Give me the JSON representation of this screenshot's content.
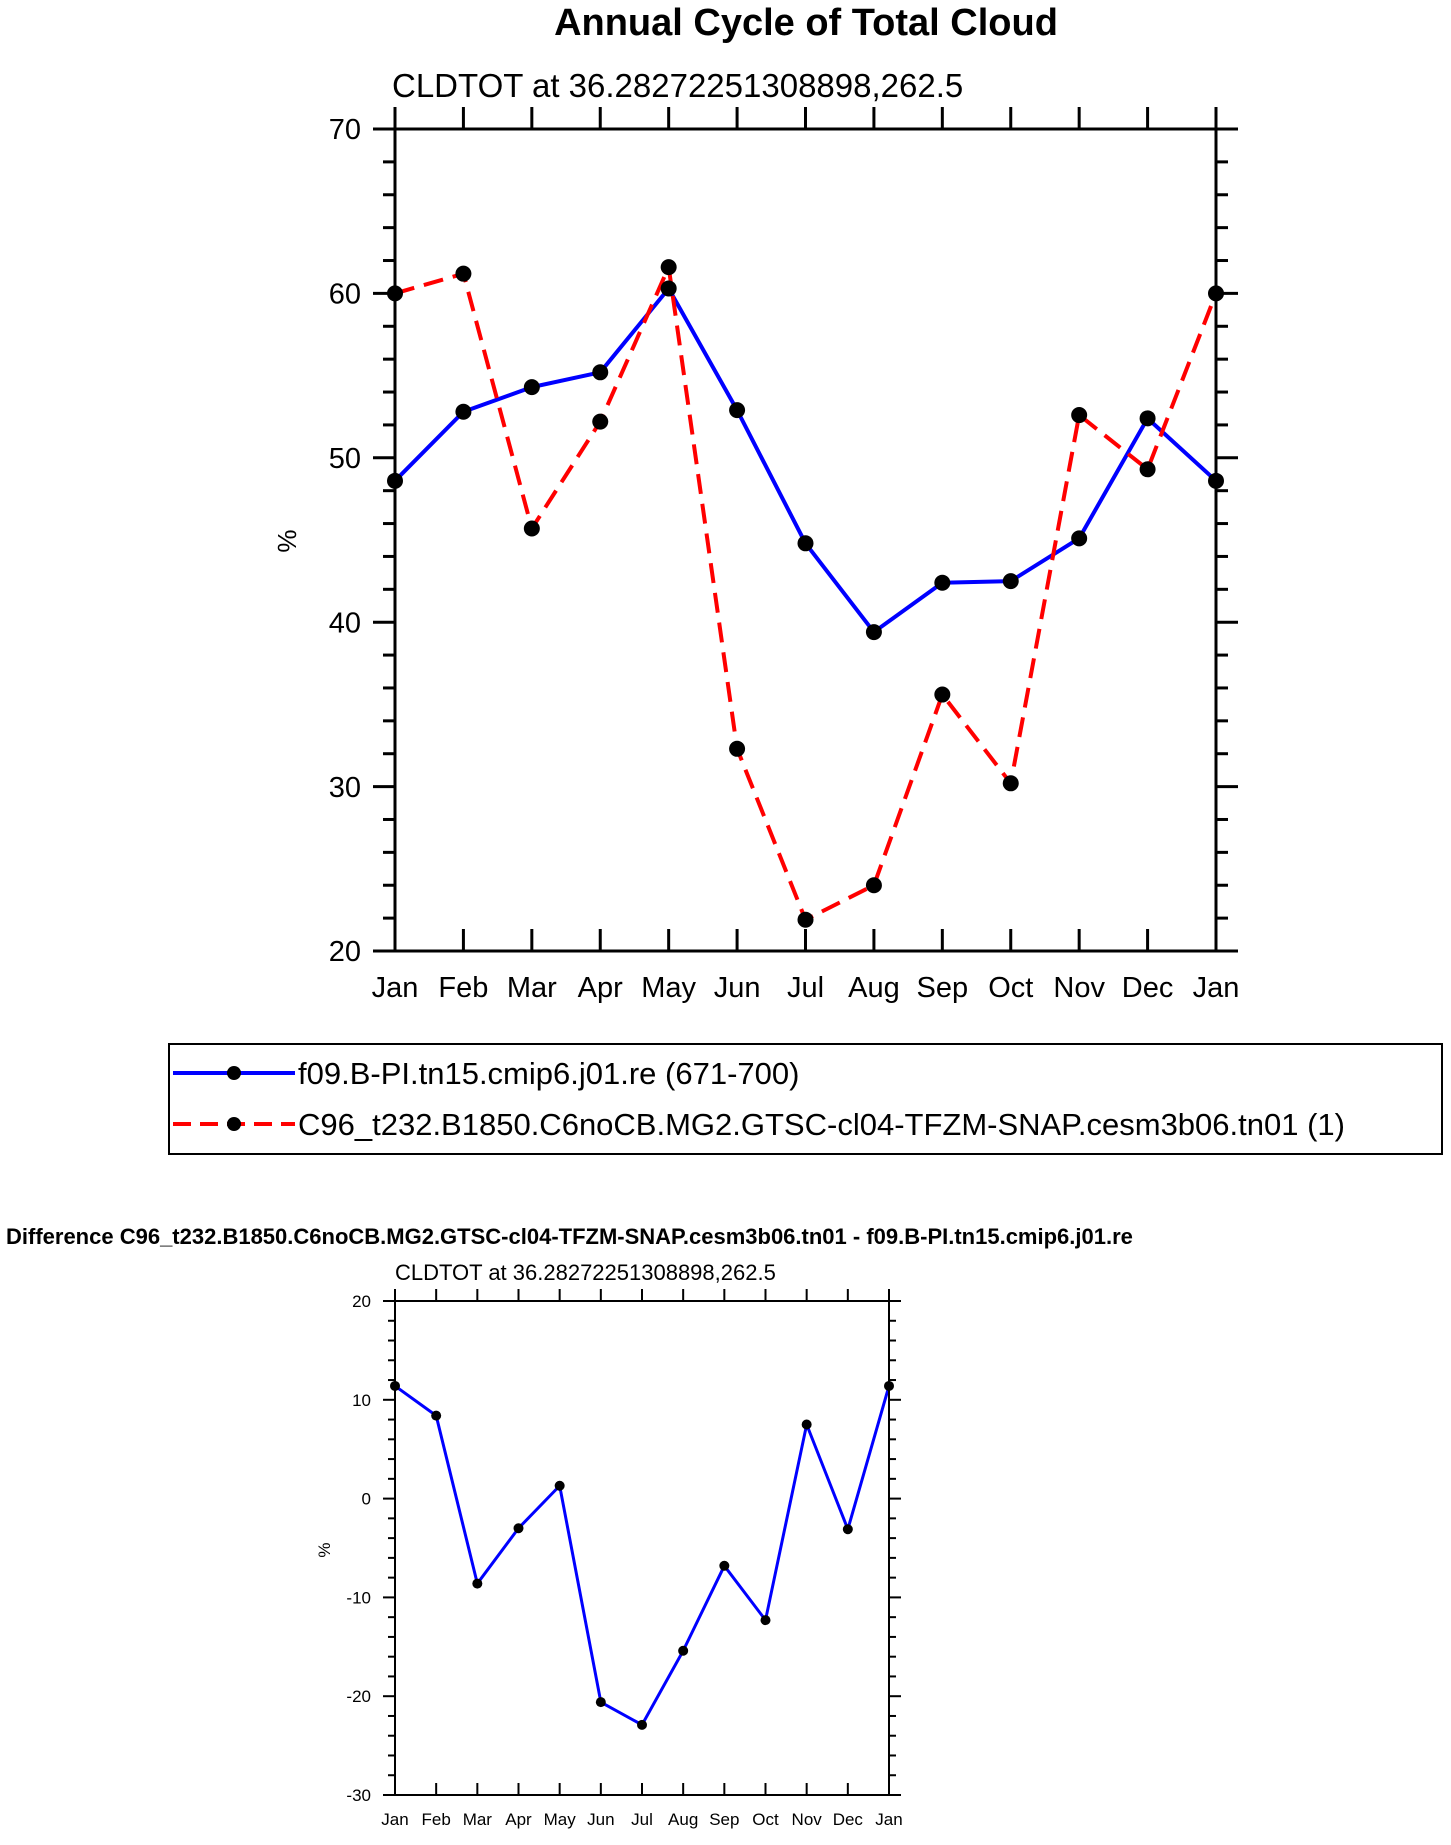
{
  "chart_data": [
    {
      "type": "line",
      "title": "Annual Cycle of Total Cloud",
      "subtitle": "CLDTOT at 36.28272251308898,262.5",
      "xlabel": "",
      "ylabel": "%",
      "categories": [
        "Jan",
        "Feb",
        "Mar",
        "Apr",
        "May",
        "Jun",
        "Jul",
        "Aug",
        "Sep",
        "Oct",
        "Nov",
        "Dec",
        "Jan"
      ],
      "ylim": [
        20,
        70
      ],
      "yticks": [
        20,
        30,
        40,
        50,
        60,
        70
      ],
      "series": [
        {
          "name": "f09.B-PI.tn15.cmip6.j01.re (671-700)",
          "color": "#0000ff",
          "dash": "solid",
          "values": [
            48.6,
            52.8,
            54.3,
            55.2,
            60.3,
            52.9,
            44.8,
            39.4,
            42.4,
            42.5,
            45.1,
            52.4,
            48.6
          ]
        },
        {
          "name": "C96_t232.B1850.C6noCB.MG2.GTSC-cl04-TFZM-SNAP.cesm3b06.tn01 (1)",
          "color": "#ff0000",
          "dash": "dashed",
          "values": [
            60.0,
            61.2,
            45.7,
            52.2,
            61.6,
            32.3,
            21.9,
            24.0,
            35.6,
            30.2,
            52.6,
            49.3,
            60.0
          ]
        }
      ]
    },
    {
      "type": "line",
      "title": "Difference C96_t232.B1850.C6noCB.MG2.GTSC-cl04-TFZM-SNAP.cesm3b06.tn01 - f09.B-PI.tn15.cmip6.j01.re",
      "subtitle": "CLDTOT at 36.28272251308898,262.5",
      "xlabel": "",
      "ylabel": "%",
      "categories": [
        "Jan",
        "Feb",
        "Mar",
        "Apr",
        "May",
        "Jun",
        "Jul",
        "Aug",
        "Sep",
        "Oct",
        "Nov",
        "Dec",
        "Jan"
      ],
      "ylim": [
        -30,
        20
      ],
      "yticks": [
        -30,
        -20,
        -10,
        0,
        10,
        20
      ],
      "series": [
        {
          "name": "difference",
          "color": "#0000ff",
          "dash": "solid",
          "values": [
            11.4,
            8.4,
            -8.6,
            -3.0,
            1.3,
            -20.6,
            -22.9,
            -15.4,
            -6.8,
            -12.3,
            7.5,
            -3.1,
            11.4
          ]
        }
      ]
    }
  ]
}
